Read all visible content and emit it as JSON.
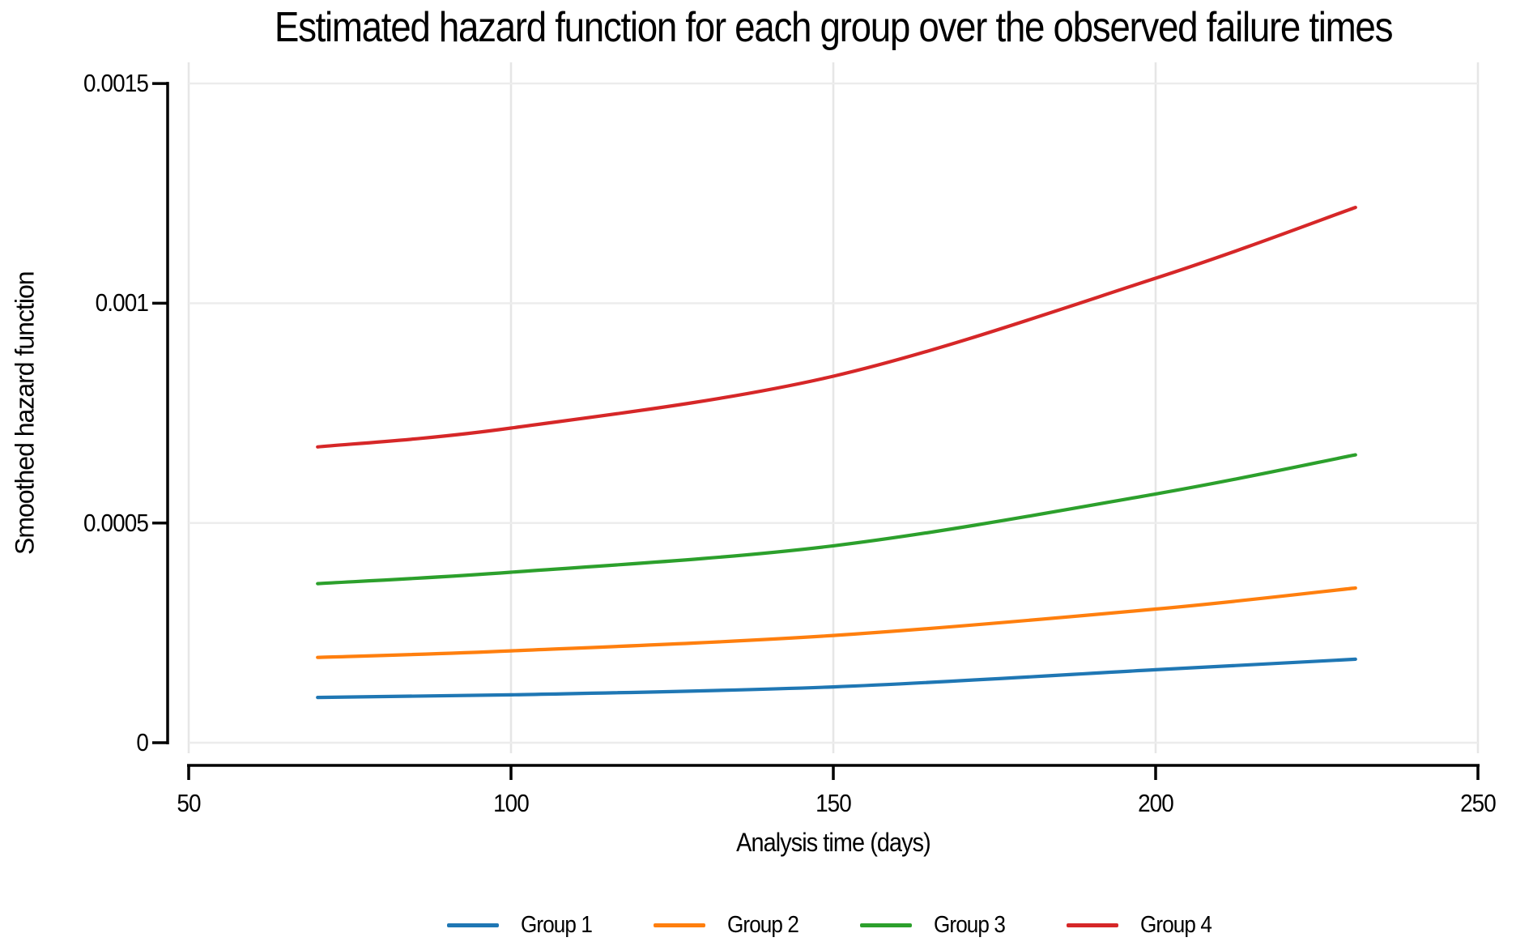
{
  "chart_data": {
    "type": "line",
    "title": "Estimated hazard function for each group over the observed failure times",
    "xlabel": "Analysis time (days)",
    "ylabel": "Smoothed hazard function",
    "xlim": [
      50,
      250
    ],
    "ylim": [
      0,
      0.0015
    ],
    "x_ticks": [
      50,
      100,
      150,
      200,
      250
    ],
    "x_tick_labels": [
      "50",
      "100",
      "150",
      "200",
      "250"
    ],
    "y_ticks": [
      0,
      0.0005,
      0.001,
      0.0015
    ],
    "y_tick_labels": [
      "0",
      "0.0005",
      "0.001",
      "0.0015"
    ],
    "grid": true,
    "legend_position": "bottom-center",
    "x": [
      70,
      100,
      150,
      200,
      231
    ],
    "series": [
      {
        "name": "Group 1",
        "color": "#1f77b4",
        "values": [
          0.000103,
          0.000109,
          0.000127,
          0.000166,
          0.00019
        ]
      },
      {
        "name": "Group 2",
        "color": "#ff7f0e",
        "values": [
          0.000194,
          0.000209,
          0.000244,
          0.000304,
          0.000352
        ]
      },
      {
        "name": "Group 3",
        "color": "#2ca02c",
        "values": [
          0.000362,
          0.000388,
          0.000448,
          0.000566,
          0.000655
        ]
      },
      {
        "name": "Group 4",
        "color": "#d62728",
        "values": [
          0.000673,
          0.000716,
          0.000834,
          0.001057,
          0.001218
        ]
      }
    ],
    "style": {
      "grid_color_h": "#ececec",
      "grid_color_v": "#e6e6e6",
      "spine_color": "#000000",
      "background": "#ffffff"
    }
  }
}
